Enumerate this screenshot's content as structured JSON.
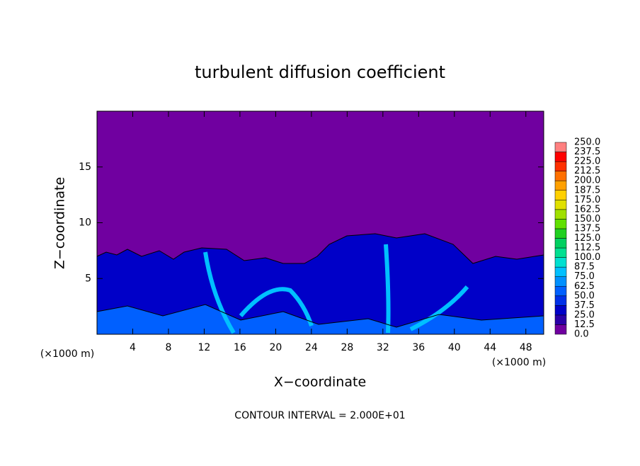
{
  "chart_data": {
    "type": "heatmap",
    "title": "turbulent diffusion coefficient",
    "xlabel": "X−coordinate",
    "ylabel": "Z−coordinate",
    "x_unit": "(×1000 m)",
    "x_unit_right": "(×1000 m)",
    "annotation": "CONTOUR INTERVAL = 2.000E+01",
    "xlim": [
      0,
      50
    ],
    "ylim": [
      0,
      20
    ],
    "xticks": [
      4,
      8,
      12,
      16,
      20,
      24,
      28,
      32,
      36,
      40,
      44,
      48
    ],
    "yticks": [
      5,
      10,
      15
    ],
    "colorbar": {
      "ticks": [
        {
          "value": 0,
          "label": "0.0"
        },
        {
          "value": 12.5,
          "label": "12.5"
        },
        {
          "value": 25,
          "label": "25.0"
        },
        {
          "value": 37.5,
          "label": "37.5"
        },
        {
          "value": 50,
          "label": "50.0"
        },
        {
          "value": 62.5,
          "label": "62.5"
        },
        {
          "value": 75,
          "label": "75.0"
        },
        {
          "value": 87.5,
          "label": "87.5"
        },
        {
          "value": 100,
          "label": "100.0"
        },
        {
          "value": 112.5,
          "label": "112.5"
        },
        {
          "value": 125,
          "label": "125.0"
        },
        {
          "value": 137.5,
          "label": "137.5"
        },
        {
          "value": 150,
          "label": "150.0"
        },
        {
          "value": 162.5,
          "label": "162.5"
        },
        {
          "value": 175,
          "label": "175.0"
        },
        {
          "value": 187.5,
          "label": "187.5"
        },
        {
          "value": 200,
          "label": "200.0"
        },
        {
          "value": 212.5,
          "label": "212.5"
        },
        {
          "value": 225,
          "label": "225.0"
        },
        {
          "value": 237.5,
          "label": "237.5"
        },
        {
          "value": 250,
          "label": "250.0"
        }
      ],
      "colors": [
        "#7000a0",
        "#2a00a8",
        "#0000c8",
        "#0030e8",
        "#0060ff",
        "#0090ff",
        "#00c0ff",
        "#00e0d0",
        "#00e090",
        "#00d060",
        "#20d020",
        "#60e000",
        "#a0e000",
        "#e0e000",
        "#ffd000",
        "#ffa000",
        "#ff7000",
        "#ff3000",
        "#ff0000",
        "#ff8080"
      ]
    }
  }
}
